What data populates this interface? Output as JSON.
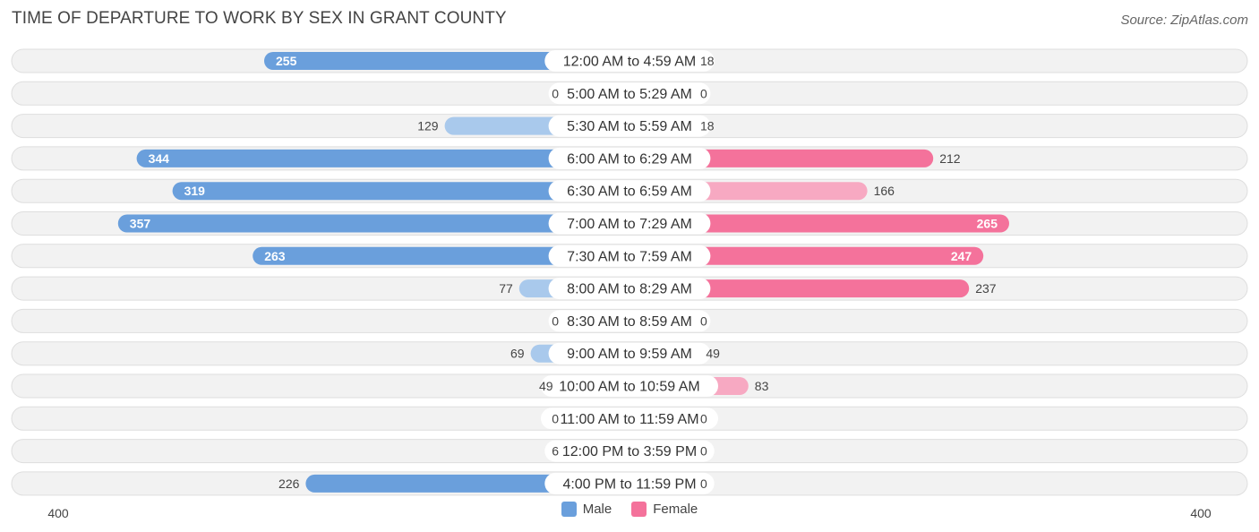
{
  "header": {
    "title": "TIME OF DEPARTURE TO WORK BY SEX IN GRANT COUNTY",
    "source": "Source: ZipAtlas.com"
  },
  "colors": {
    "male_strong": "#6a9fdc",
    "male_light": "#a9c9ec",
    "female_strong": "#f4729b",
    "female_light": "#f7a9c2"
  },
  "chart_data": {
    "type": "bar",
    "orientation": "horizontal-diverging",
    "title": "TIME OF DEPARTURE TO WORK BY SEX IN GRANT COUNTY",
    "categories": [
      "12:00 AM to 4:59 AM",
      "5:00 AM to 5:29 AM",
      "5:30 AM to 5:59 AM",
      "6:00 AM to 6:29 AM",
      "6:30 AM to 6:59 AM",
      "7:00 AM to 7:29 AM",
      "7:30 AM to 7:59 AM",
      "8:00 AM to 8:29 AM",
      "8:30 AM to 8:59 AM",
      "9:00 AM to 9:59 AM",
      "10:00 AM to 10:59 AM",
      "11:00 AM to 11:59 AM",
      "12:00 PM to 3:59 PM",
      "4:00 PM to 11:59 PM"
    ],
    "series": [
      {
        "name": "Male",
        "values": [
          255,
          0,
          129,
          344,
          319,
          357,
          263,
          77,
          0,
          69,
          49,
          0,
          6,
          226
        ]
      },
      {
        "name": "Female",
        "values": [
          18,
          0,
          18,
          212,
          166,
          265,
          247,
          237,
          0,
          49,
          83,
          0,
          0,
          0
        ]
      }
    ],
    "axis": {
      "left_label": "400",
      "right_label": "400",
      "max": 400
    },
    "legend": {
      "position": "bottom-center",
      "entries": [
        "Male",
        "Female"
      ]
    }
  }
}
